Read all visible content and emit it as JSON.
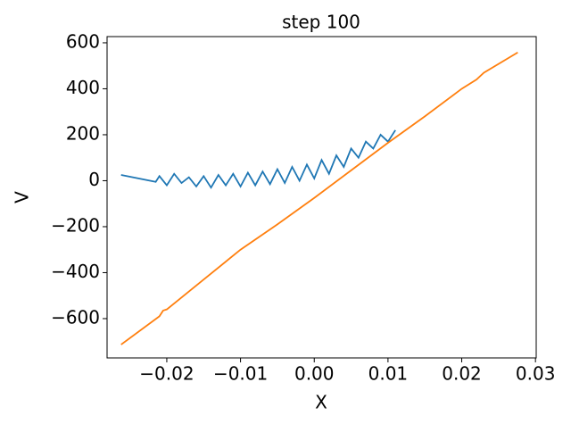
{
  "chart_data": {
    "type": "line",
    "title": "step 100",
    "xlabel": "X",
    "ylabel": "V",
    "xlim": [
      -0.0281,
      0.0301
    ],
    "ylim": [
      -771,
      627
    ],
    "xticks": [
      {
        "value": -0.02,
        "label": "−0.02"
      },
      {
        "value": -0.01,
        "label": "−0.01"
      },
      {
        "value": 0,
        "label": "0.00"
      },
      0.01,
      0.02,
      0.03
    ],
    "yticks": [
      {
        "value": -600,
        "label": "−600"
      },
      {
        "value": -400,
        "label": "−400"
      },
      {
        "value": -200,
        "label": "−200"
      },
      0,
      200,
      400,
      600
    ],
    "series": [
      {
        "color": "#1f77b4",
        "x": [
          -0.0262,
          -0.0215,
          -0.021,
          -0.02,
          -0.019,
          -0.018,
          -0.017,
          -0.016,
          -0.015,
          -0.014,
          -0.013,
          -0.012,
          -0.011,
          -0.01,
          -0.009,
          -0.008,
          -0.007,
          -0.006,
          -0.005,
          -0.004,
          -0.003,
          -0.002,
          -0.001,
          0,
          0.001,
          0.002,
          0.003,
          0.004,
          0.005,
          0.006,
          0.007,
          0.008,
          0.009,
          0.01,
          0.011
        ],
        "values": [
          25,
          -5,
          20,
          -20,
          30,
          -10,
          15,
          -25,
          20,
          -30,
          25,
          -20,
          30,
          -25,
          35,
          -20,
          40,
          -15,
          50,
          -10,
          60,
          0,
          70,
          10,
          90,
          30,
          110,
          60,
          140,
          100,
          170,
          140,
          200,
          170,
          220
        ]
      },
      {
        "color": "#ff7f0e",
        "x": [
          -0.0262,
          -0.021,
          -0.0205,
          -0.02,
          -0.015,
          -0.01,
          -0.005,
          0,
          0.005,
          0.01,
          0.015,
          0.02,
          0.022,
          0.023,
          0.0276
        ],
        "values": [
          -713,
          -590,
          -565,
          -560,
          -430,
          -300,
          -190,
          -75,
          45,
          165,
          280,
          400,
          440,
          470,
          558
        ]
      }
    ]
  }
}
